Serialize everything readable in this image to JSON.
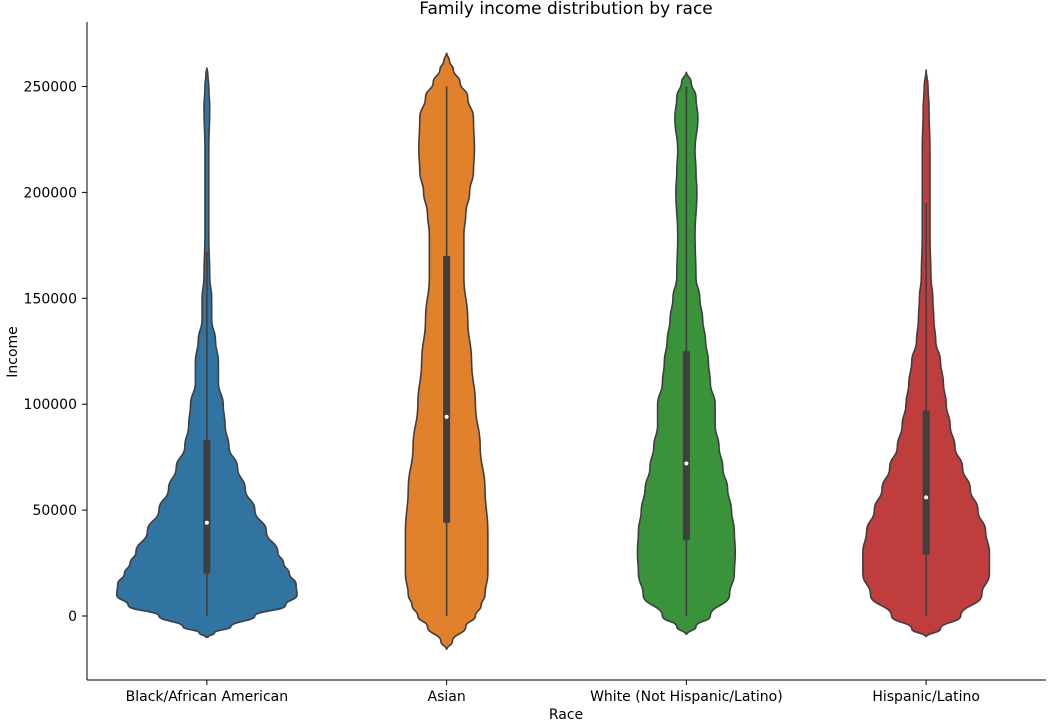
{
  "chart_data": {
    "type": "violin",
    "title": "Family income distribution by race",
    "xlabel": "Race",
    "ylabel": "Income",
    "ylim": [
      -30000,
      280000
    ],
    "yticks": [
      0,
      50000,
      100000,
      150000,
      200000,
      250000
    ],
    "ytick_labels": [
      "0",
      "50000",
      "100000",
      "150000",
      "200000",
      "250000"
    ],
    "categories": [
      "Black/African American",
      "Asian",
      "White (Not Hispanic/Latino)",
      "Hispanic/Latino"
    ],
    "series": [
      {
        "name": "Black/African American",
        "color": "#3274a1",
        "whisker": [
          0,
          172000
        ],
        "q1": 20000,
        "median": 44000,
        "q3": 83000,
        "profile": [
          [
            -10000,
            0.01
          ],
          [
            -8000,
            0.08
          ],
          [
            -5000,
            0.25
          ],
          [
            0,
            0.5
          ],
          [
            5000,
            0.82
          ],
          [
            10000,
            0.94
          ],
          [
            15000,
            0.93
          ],
          [
            20000,
            0.86
          ],
          [
            25000,
            0.8
          ],
          [
            30000,
            0.74
          ],
          [
            40000,
            0.62
          ],
          [
            50000,
            0.5
          ],
          [
            60000,
            0.4
          ],
          [
            70000,
            0.32
          ],
          [
            80000,
            0.23
          ],
          [
            90000,
            0.19
          ],
          [
            100000,
            0.17
          ],
          [
            110000,
            0.12
          ],
          [
            120000,
            0.12
          ],
          [
            130000,
            0.09
          ],
          [
            140000,
            0.05
          ],
          [
            150000,
            0.05
          ],
          [
            160000,
            0.03
          ],
          [
            180000,
            0.02
          ],
          [
            200000,
            0.02
          ],
          [
            220000,
            0.02
          ],
          [
            240000,
            0.03
          ],
          [
            250000,
            0.02
          ],
          [
            256000,
            0.01
          ],
          [
            259000,
            0.0
          ]
        ]
      },
      {
        "name": "Asian",
        "color": "#e1812c",
        "whisker": [
          0,
          250000
        ],
        "q1": 44000,
        "median": 94000,
        "q3": 170000,
        "profile": [
          [
            -16000,
            0.0
          ],
          [
            -12000,
            0.06
          ],
          [
            -5000,
            0.2
          ],
          [
            0,
            0.3
          ],
          [
            5000,
            0.36
          ],
          [
            10000,
            0.4
          ],
          [
            20000,
            0.43
          ],
          [
            40000,
            0.43
          ],
          [
            60000,
            0.4
          ],
          [
            80000,
            0.35
          ],
          [
            100000,
            0.3
          ],
          [
            120000,
            0.26
          ],
          [
            140000,
            0.22
          ],
          [
            160000,
            0.18
          ],
          [
            180000,
            0.18
          ],
          [
            190000,
            0.2
          ],
          [
            200000,
            0.24
          ],
          [
            210000,
            0.28
          ],
          [
            220000,
            0.29
          ],
          [
            235000,
            0.28
          ],
          [
            245000,
            0.22
          ],
          [
            252000,
            0.14
          ],
          [
            258000,
            0.07
          ],
          [
            262000,
            0.03
          ],
          [
            266000,
            0.0
          ]
        ]
      },
      {
        "name": "White (Not Hispanic/Latino)",
        "color": "#3a923a",
        "whisker": [
          0,
          250000
        ],
        "q1": 36000,
        "median": 72000,
        "q3": 125000,
        "profile": [
          [
            -9000,
            0.0
          ],
          [
            -5000,
            0.1
          ],
          [
            0,
            0.25
          ],
          [
            10000,
            0.45
          ],
          [
            20000,
            0.5
          ],
          [
            30000,
            0.51
          ],
          [
            40000,
            0.5
          ],
          [
            50000,
            0.47
          ],
          [
            60000,
            0.43
          ],
          [
            70000,
            0.38
          ],
          [
            80000,
            0.34
          ],
          [
            90000,
            0.3
          ],
          [
            100000,
            0.3
          ],
          [
            110000,
            0.25
          ],
          [
            120000,
            0.23
          ],
          [
            130000,
            0.2
          ],
          [
            140000,
            0.17
          ],
          [
            150000,
            0.14
          ],
          [
            160000,
            0.1
          ],
          [
            180000,
            0.09
          ],
          [
            200000,
            0.11
          ],
          [
            210000,
            0.1
          ],
          [
            220000,
            0.09
          ],
          [
            235000,
            0.12
          ],
          [
            245000,
            0.1
          ],
          [
            252000,
            0.05
          ],
          [
            257000,
            0.0
          ]
        ]
      },
      {
        "name": "Hispanic/Latino",
        "color": "#c03d3e",
        "whisker": [
          0,
          195000
        ],
        "q1": 29000,
        "median": 56000,
        "q3": 97000,
        "profile": [
          [
            -10000,
            0.0
          ],
          [
            -6000,
            0.15
          ],
          [
            0,
            0.36
          ],
          [
            10000,
            0.58
          ],
          [
            20000,
            0.66
          ],
          [
            30000,
            0.66
          ],
          [
            40000,
            0.62
          ],
          [
            50000,
            0.54
          ],
          [
            60000,
            0.46
          ],
          [
            70000,
            0.38
          ],
          [
            80000,
            0.3
          ],
          [
            90000,
            0.25
          ],
          [
            100000,
            0.21
          ],
          [
            110000,
            0.18
          ],
          [
            120000,
            0.15
          ],
          [
            130000,
            0.1
          ],
          [
            140000,
            0.08
          ],
          [
            150000,
            0.07
          ],
          [
            160000,
            0.05
          ],
          [
            180000,
            0.04
          ],
          [
            200000,
            0.04
          ],
          [
            220000,
            0.04
          ],
          [
            240000,
            0.03
          ],
          [
            250000,
            0.02
          ],
          [
            258000,
            0.0
          ]
        ]
      }
    ]
  }
}
